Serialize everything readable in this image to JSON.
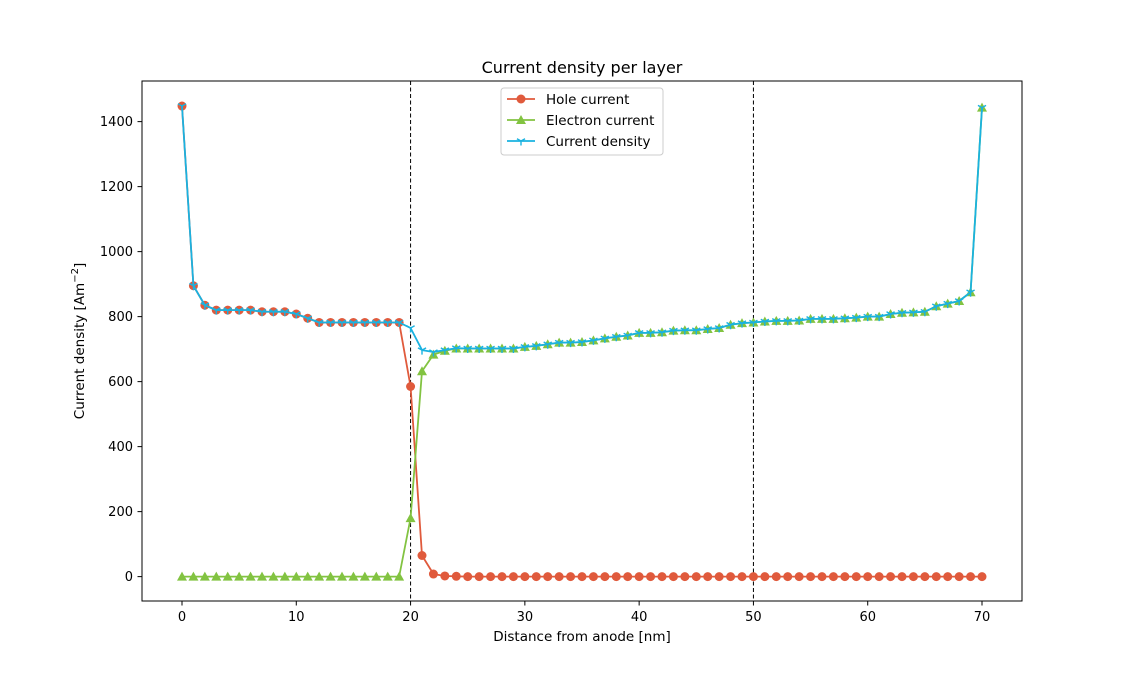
{
  "chart_data": {
    "type": "line",
    "title": "Current density per layer",
    "xlabel": "Distance from anode [nm]",
    "ylabel": "Current density [Am⁻²]",
    "ylabel_main": "Current density [Am",
    "ylabel_sup": "−2",
    "ylabel_end": "]",
    "xlim": [
      -3.5,
      73.5
    ],
    "ylim": [
      -75,
      1525
    ],
    "xticks": [
      0,
      10,
      20,
      30,
      40,
      50,
      60,
      70
    ],
    "yticks": [
      0,
      200,
      400,
      600,
      800,
      1000,
      1200,
      1400
    ],
    "vlines": [
      20,
      50
    ],
    "grid": false,
    "legend_position": "top-center",
    "x": [
      0,
      1,
      2,
      3,
      4,
      5,
      6,
      7,
      8,
      9,
      10,
      11,
      12,
      13,
      14,
      15,
      16,
      17,
      18,
      19,
      20,
      21,
      22,
      23,
      24,
      25,
      26,
      27,
      28,
      29,
      30,
      31,
      32,
      33,
      34,
      35,
      36,
      37,
      38,
      39,
      40,
      41,
      42,
      43,
      44,
      45,
      46,
      47,
      48,
      49,
      50,
      51,
      52,
      53,
      54,
      55,
      56,
      57,
      58,
      59,
      60,
      61,
      62,
      63,
      64,
      65,
      66,
      67,
      68,
      69,
      70
    ],
    "series": [
      {
        "name": "Hole current",
        "color": "#e05a3c",
        "marker": "circle",
        "values": [
          1448,
          895,
          835,
          820,
          820,
          820,
          820,
          815,
          815,
          815,
          808,
          795,
          782,
          782,
          782,
          782,
          782,
          782,
          782,
          782,
          585,
          65,
          8,
          2,
          1,
          0,
          0,
          0,
          0,
          0,
          0,
          0,
          0,
          0,
          0,
          0,
          0,
          0,
          0,
          0,
          0,
          0,
          0,
          0,
          0,
          0,
          0,
          0,
          0,
          0,
          0,
          0,
          0,
          0,
          0,
          0,
          0,
          0,
          0,
          0,
          0,
          0,
          0,
          0,
          0,
          0,
          0,
          0,
          0,
          0,
          0
        ]
      },
      {
        "name": "Electron current",
        "color": "#82c341",
        "marker": "triangle",
        "values": [
          0,
          0,
          0,
          0,
          0,
          0,
          0,
          0,
          0,
          0,
          0,
          0,
          0,
          0,
          0,
          0,
          0,
          0,
          0,
          0,
          180,
          632,
          683,
          695,
          702,
          702,
          702,
          702,
          702,
          702,
          707,
          710,
          715,
          720,
          720,
          722,
          727,
          733,
          738,
          742,
          750,
          750,
          752,
          757,
          758,
          758,
          762,
          765,
          775,
          780,
          782,
          785,
          787,
          787,
          788,
          793,
          793,
          793,
          795,
          797,
          800,
          800,
          808,
          812,
          813,
          815,
          832,
          840,
          848,
          875,
          1443
        ]
      },
      {
        "name": "Current density",
        "color": "#1ab2e0",
        "marker": "tri_down",
        "values": [
          1448,
          895,
          835,
          820,
          820,
          820,
          820,
          815,
          815,
          815,
          808,
          795,
          782,
          782,
          782,
          782,
          782,
          782,
          782,
          782,
          765,
          697,
          691,
          697,
          703,
          702,
          702,
          702,
          702,
          702,
          707,
          710,
          715,
          720,
          720,
          722,
          727,
          733,
          738,
          742,
          750,
          750,
          752,
          757,
          758,
          758,
          762,
          765,
          775,
          780,
          782,
          785,
          787,
          787,
          788,
          793,
          793,
          793,
          795,
          797,
          800,
          800,
          808,
          812,
          813,
          815,
          832,
          840,
          848,
          875,
          1443
        ]
      }
    ]
  }
}
